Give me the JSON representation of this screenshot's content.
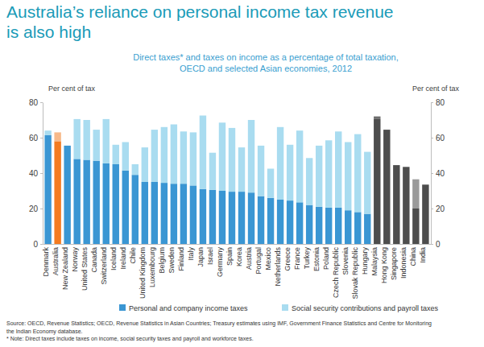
{
  "chart_data": {
    "type": "bar",
    "stacked": true,
    "legend": "bottom",
    "title": [
      "Australia’s reliance on personal income tax revenue",
      "is also high"
    ],
    "subtitle": [
      "Direct taxes* and taxes on income as a percentage of total taxation,",
      "OECD and selected Asian economies, 2012"
    ],
    "ylabel": "Per cent of tax",
    "y2label": "Per cent of tax",
    "ylim": [
      0,
      80
    ],
    "yticks": [
      0,
      20,
      40,
      60,
      80
    ],
    "y2lim": [
      0,
      80
    ],
    "y2ticks": [
      0,
      20,
      40,
      60,
      80
    ],
    "categories": [
      "Denmark",
      "Australia",
      "New Zealand",
      "Norway",
      "United States",
      "Canada",
      "Switzerland",
      "Iceland",
      "Ireland",
      "Chile",
      "United Kingdom",
      "Luxembourg",
      "Belgium",
      "Sweden",
      "Finland",
      "Italy",
      "Japan",
      "Israel",
      "Germany",
      "Spain",
      "Korea",
      "Austria",
      "Portugal",
      "Mexico",
      "Netherlands",
      "Greece",
      "France",
      "Turkey",
      "Estonia",
      "Poland",
      "Czech Republic",
      "Slovenia",
      "Slovak Republic",
      "Hungary",
      "Malaysia",
      "Hong Kong",
      "Singapore",
      "Indonesia",
      "China",
      "India"
    ],
    "series": [
      {
        "name": "Personal and company income taxes",
        "color": "#3a96d3",
        "values": [
          61.5,
          58,
          55.5,
          48,
          47.5,
          47,
          45.5,
          45,
          41.5,
          39,
          35,
          35,
          34.5,
          34,
          34,
          33,
          31,
          30.5,
          30,
          29.5,
          29.5,
          29,
          27,
          26,
          25,
          24.5,
          23.5,
          22,
          21,
          20.5,
          20.5,
          19,
          18,
          17,
          70.5,
          64.5,
          44.5,
          43.5,
          20,
          33.5
        ],
        "colors": [
          "#3a96d3",
          "#f47b20",
          "#3a96d3",
          "#3a96d3",
          "#3a96d3",
          "#3a96d3",
          "#3a96d3",
          "#3a96d3",
          "#3a96d3",
          "#3a96d3",
          "#3a96d3",
          "#3a96d3",
          "#3a96d3",
          "#3a96d3",
          "#3a96d3",
          "#3a96d3",
          "#3a96d3",
          "#3a96d3",
          "#3a96d3",
          "#3a96d3",
          "#3a96d3",
          "#3a96d3",
          "#3a96d3",
          "#3a96d3",
          "#3a96d3",
          "#3a96d3",
          "#3a96d3",
          "#3a96d3",
          "#3a96d3",
          "#3a96d3",
          "#3a96d3",
          "#3a96d3",
          "#3a96d3",
          "#3a96d3",
          "#4d4d4d",
          "#4d4d4d",
          "#4d4d4d",
          "#4d4d4d",
          "#4d4d4d",
          "#4d4d4d"
        ]
      },
      {
        "name": "Social security contributions and payroll taxes",
        "color": "#a9dcf0",
        "values": [
          2.5,
          5,
          0,
          22.5,
          22.5,
          17.5,
          25,
          11,
          16,
          6,
          19.5,
          29.5,
          31.5,
          33.5,
          29.5,
          30,
          41.5,
          21,
          38.5,
          36,
          25,
          41,
          28.5,
          16.5,
          41,
          31.5,
          40.5,
          26.5,
          34.5,
          38,
          43,
          38.5,
          44,
          35,
          1.5,
          0,
          0,
          0,
          16.5,
          0
        ],
        "colors": [
          "#a9dcf0",
          "#f7b98a",
          "#a9dcf0",
          "#a9dcf0",
          "#a9dcf0",
          "#a9dcf0",
          "#a9dcf0",
          "#a9dcf0",
          "#a9dcf0",
          "#a9dcf0",
          "#a9dcf0",
          "#a9dcf0",
          "#a9dcf0",
          "#a9dcf0",
          "#a9dcf0",
          "#a9dcf0",
          "#a9dcf0",
          "#a9dcf0",
          "#a9dcf0",
          "#a9dcf0",
          "#a9dcf0",
          "#a9dcf0",
          "#a9dcf0",
          "#a9dcf0",
          "#a9dcf0",
          "#a9dcf0",
          "#a9dcf0",
          "#a9dcf0",
          "#a9dcf0",
          "#a9dcf0",
          "#a9dcf0",
          "#a9dcf0",
          "#a9dcf0",
          "#a9dcf0",
          "#6e6e6e",
          "#9a9a9a",
          "#9a9a9a",
          "#9a9a9a",
          "#9a9a9a",
          "#9a9a9a"
        ]
      }
    ],
    "notes": [
      "Source: OECD, Revenue Statistics; OECD, Revenue Statistics in Asian Countries; Treasury estimates using IMF, Government Finance Statistics and Centre for Monitoring",
      "the Indian Economy database.",
      "* Note: Direct taxes include taxes on income, social security taxes and payroll and workforce taxes."
    ]
  }
}
